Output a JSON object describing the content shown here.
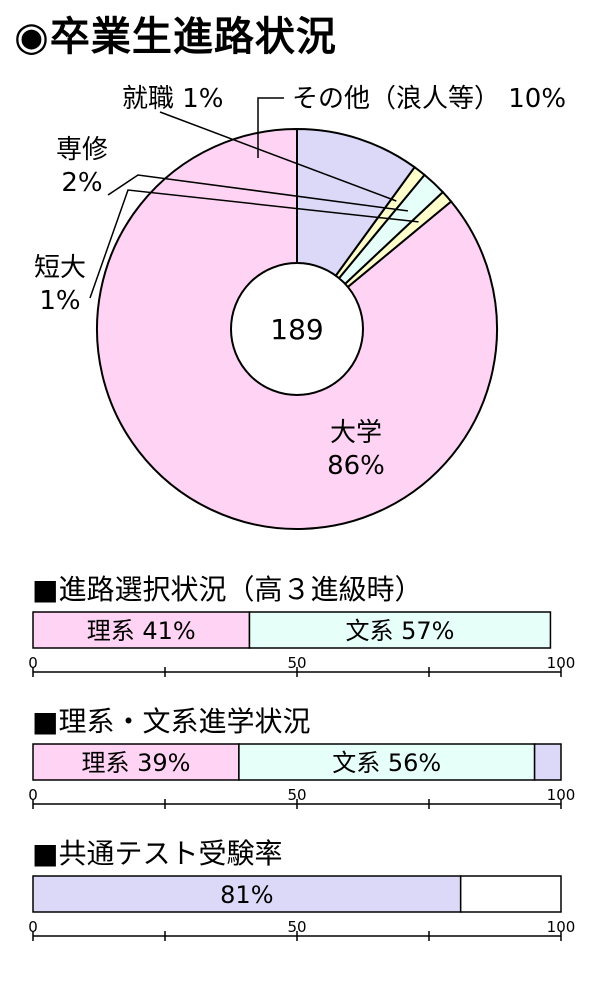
{
  "title": "◉卒業生進路状況",
  "chart_data": [
    {
      "type": "pie",
      "title": "",
      "center_label": "189",
      "slices": [
        {
          "label": "大学",
          "value": 86,
          "display": "86%",
          "color": "#ffd3f3"
        },
        {
          "label": "短大",
          "value": 1,
          "display": "1%",
          "color": "#ffffcc"
        },
        {
          "label": "専修",
          "value": 2,
          "display": "2%",
          "color": "#e6fff9"
        },
        {
          "label": "就職",
          "value": 1,
          "display": "1%",
          "color": "#ffffcc"
        },
        {
          "label": "その他（浪人等）",
          "value": 10,
          "display": "10%",
          "color": "#dcd8f7"
        }
      ]
    },
    {
      "type": "bar",
      "orientation": "horizontal-stacked",
      "title": "■進路選択状況（高３進級時）",
      "xlim": [
        0,
        100
      ],
      "ticks": [
        "0",
        "50",
        "100"
      ],
      "segments": [
        {
          "label": "理系 41%",
          "value": 41,
          "color": "#ffd3f3"
        },
        {
          "label": "文系 57%",
          "value": 57,
          "color": "#e6fff9"
        }
      ]
    },
    {
      "type": "bar",
      "orientation": "horizontal-stacked",
      "title": "■理系・文系進学状況",
      "xlim": [
        0,
        100
      ],
      "ticks": [
        "0",
        "50",
        "100"
      ],
      "segments": [
        {
          "label": "理系 39%",
          "value": 39,
          "color": "#ffd3f3"
        },
        {
          "label": "文系 56%",
          "value": 56,
          "color": "#e6fff9"
        },
        {
          "label": "",
          "value": 5,
          "color": "#dcd8f7"
        }
      ]
    },
    {
      "type": "bar",
      "orientation": "horizontal",
      "title": "■共通テスト受験率",
      "xlim": [
        0,
        100
      ],
      "ticks": [
        "0",
        "50",
        "100"
      ],
      "segments": [
        {
          "label": "81%",
          "value": 81,
          "color": "#dcd8f7"
        },
        {
          "label": "",
          "value": 19,
          "color": "#ffffff"
        }
      ]
    }
  ]
}
